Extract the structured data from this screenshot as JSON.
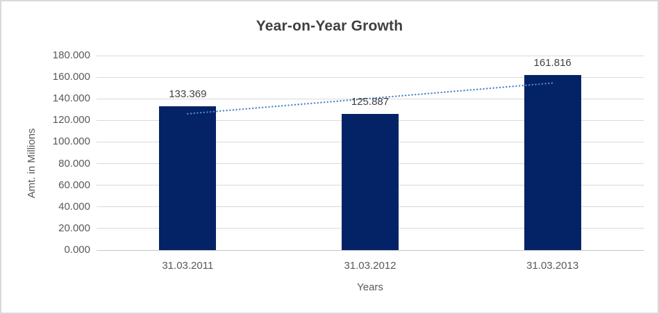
{
  "chart_data": {
    "type": "bar",
    "title": "Year-on-Year Growth",
    "xlabel": "Years",
    "ylabel": "Amt. in Millions",
    "categories": [
      "31.03.2011",
      "31.03.2012",
      "31.03.2013"
    ],
    "values": [
      133.369,
      125.887,
      161.816
    ],
    "data_labels": [
      "133.369",
      "125.887",
      "161.816"
    ],
    "ylim": [
      0,
      180
    ],
    "y_tick_step": 20,
    "y_tick_labels": [
      "0.000",
      "20.000",
      "40.000",
      "60.000",
      "80.000",
      "100.000",
      "120.000",
      "140.000",
      "160.000",
      "180.000"
    ],
    "grid": true,
    "legend_position": "none",
    "trendline": {
      "type": "linear",
      "style": "dotted"
    },
    "colors": {
      "bar": "#042366",
      "trendline": "#4e86c8",
      "gridline": "#d9d9d9",
      "axis_line": "#c6c6c6",
      "tick_text": "#595959",
      "data_label_text": "#404040",
      "title_text": "#3f3f3f",
      "border": "#d9d9d9",
      "background": "#ffffff"
    }
  }
}
